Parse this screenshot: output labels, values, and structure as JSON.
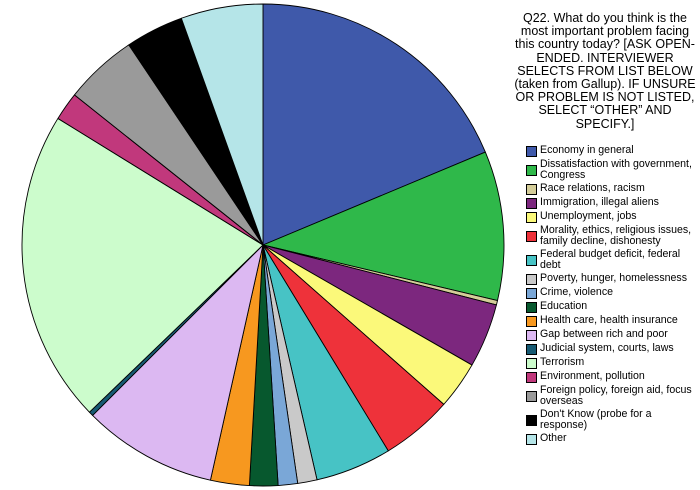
{
  "chart_data": {
    "type": "pie",
    "title": "Q22. What do you think is the most important problem facing this country today? [ASK OPEN-ENDED. INTERVIEWER SELECTS FROM LIST BELOW (taken from Gallup).  IF UNSURE OR PROBLEM IS NOT LISTED, SELECT “OTHER” AND SPECIFY.]",
    "legend_position": "right",
    "start_angle_deg": 0,
    "direction": "clockwise",
    "categories": [
      "Economy in general",
      "Dissatisfaction with government, Congress",
      "Race relations, racism",
      "Immigration, illegal aliens",
      "Unemployment, jobs",
      "Morality, ethics, religious issues, family decline, dishonesty",
      "Federal budget deficit, federal debt",
      "Poverty, hunger, homelessness",
      "Crime, violence",
      "Education",
      "Health care, health insurance",
      "Gap between rich and poor",
      "Judicial system, courts, laws",
      "Terrorism",
      "Environment, pollution",
      "Foreign policy, foreign aid, focus overseas",
      "Don't Know (probe for a response)",
      "Other"
    ],
    "values": [
      18.7,
      10.0,
      0.3,
      4.3,
      3.2,
      4.8,
      5.1,
      1.3,
      1.3,
      1.9,
      2.6,
      9.0,
      0.3,
      21.0,
      1.9,
      4.9,
      3.9,
      5.5
    ],
    "unit": "percent (estimated from slice angles)",
    "colors": [
      "#3f59aa",
      "#2fb84a",
      "#d4cd99",
      "#7c277e",
      "#fbf97a",
      "#ee323a",
      "#47c3c5",
      "#c9c9c9",
      "#7aa7d7",
      "#07582e",
      "#f7981f",
      "#dcb8f2",
      "#165a73",
      "#ccfccc",
      "#c1387c",
      "#9a9a9a",
      "#000000",
      "#b5e5e8"
    ]
  },
  "legend": {
    "items": [
      {
        "label": "Economy in general",
        "color": "#3f59aa"
      },
      {
        "label": "Dissatisfaction with government, Congress",
        "color": "#2fb84a"
      },
      {
        "label": "Race relations, racism",
        "color": "#d4cd99"
      },
      {
        "label": "Immigration, illegal aliens",
        "color": "#7c277e"
      },
      {
        "label": "Unemployment, jobs",
        "color": "#fbf97a"
      },
      {
        "label": "Morality, ethics, religious issues, family decline, dishonesty",
        "color": "#ee323a"
      },
      {
        "label": "Federal budget deficit, federal debt",
        "color": "#47c3c5"
      },
      {
        "label": "Poverty, hunger, homelessness",
        "color": "#c9c9c9"
      },
      {
        "label": "Crime, violence",
        "color": "#7aa7d7"
      },
      {
        "label": "Education",
        "color": "#07582e"
      },
      {
        "label": "Health care, health insurance",
        "color": "#f7981f"
      },
      {
        "label": "Gap between rich and poor",
        "color": "#dcb8f2"
      },
      {
        "label": "Judicial system, courts, laws",
        "color": "#165a73"
      },
      {
        "label": "Terrorism",
        "color": "#ccfccc"
      },
      {
        "label": "Environment, pollution",
        "color": "#c1387c"
      },
      {
        "label": "Foreign policy, foreign aid, focus overseas",
        "color": "#9a9a9a"
      },
      {
        "label": "Don't Know (probe for a response)",
        "color": "#000000"
      },
      {
        "label": "Other",
        "color": "#b5e5e8"
      }
    ]
  }
}
